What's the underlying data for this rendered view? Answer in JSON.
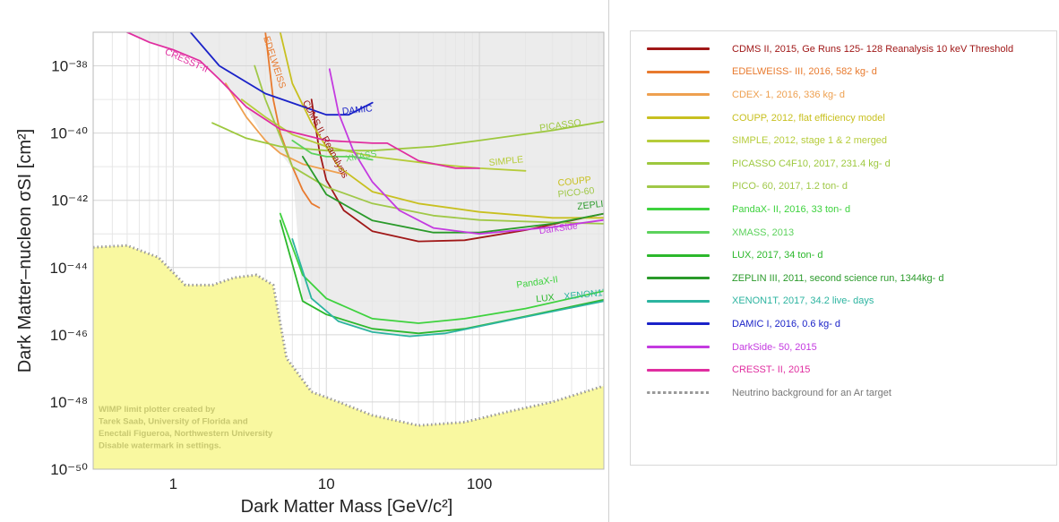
{
  "chart_data": {
    "type": "line",
    "title": "",
    "xlabel": "Dark Matter Mass [GeV/c²]",
    "ylabel": "Dark Matter–nucleon σSI [cm²]",
    "x_scale": "log",
    "y_scale": "log",
    "xlim": [
      0.3,
      650
    ],
    "ylim": [
      1e-50,
      1e-37
    ],
    "x_ticks": [
      {
        "value": 1,
        "label": "1"
      },
      {
        "value": 10,
        "label": "10"
      },
      {
        "value": 100,
        "label": "100"
      }
    ],
    "y_ticks": [
      {
        "value": 1e-38,
        "label": "10⁻³⁸"
      },
      {
        "value": 1e-40,
        "label": "10⁻⁴⁰"
      },
      {
        "value": 1e-42,
        "label": "10⁻⁴²"
      },
      {
        "value": 1e-44,
        "label": "10⁻⁴⁴"
      },
      {
        "value": 1e-46,
        "label": "10⁻⁴⁶"
      },
      {
        "value": 1e-48,
        "label": "10⁻⁴⁸"
      },
      {
        "value": 1e-50,
        "label": "10⁻⁵⁰"
      }
    ],
    "grid": true,
    "legend_position": "right",
    "watermark_lines": [
      "WIMP limit plotter created by",
      "Tarek Saab, University of Florida and",
      "Enectali Figueroa, Northwestern University",
      "Disable watermark in settings."
    ],
    "series": [
      {
        "id": "cdms",
        "name": "CDMS II, 2015, Ge Runs 125- 128 Reanalysis 10 keV Threshold",
        "color": "#a01818",
        "label": "CDMS II, Reanalysis",
        "points": [
          [
            8,
            1e-39
          ],
          [
            9,
            3e-41
          ],
          [
            10,
            4e-42
          ],
          [
            13,
            5e-43
          ],
          [
            20,
            1.2e-43
          ],
          [
            40,
            6e-44
          ],
          [
            80,
            6.5e-44
          ],
          [
            200,
            1.3e-43
          ],
          [
            650,
            4e-43
          ]
        ]
      },
      {
        "id": "edelweiss",
        "name": "EDELWEISS- III, 2016, 582 kg- d",
        "color": "#e87a2e",
        "label": "EDELWEISS",
        "points": [
          [
            4,
            1e-37
          ],
          [
            4.5,
            1e-39
          ],
          [
            5,
            1e-40
          ],
          [
            6,
            1e-41
          ],
          [
            7,
            2e-42
          ],
          [
            8,
            8e-43
          ],
          [
            9,
            6e-43
          ]
        ]
      },
      {
        "id": "cdex",
        "name": "CDEX- 1, 2016, 336 kg- d",
        "color": "#eea050",
        "label": "",
        "points": [
          [
            2.2,
            3e-39
          ],
          [
            3,
            3e-40
          ],
          [
            4,
            6e-41
          ],
          [
            5,
            2.5e-41
          ],
          [
            7,
            1.2e-41
          ],
          [
            10,
            8e-42
          ],
          [
            13,
            6e-42
          ]
        ]
      },
      {
        "id": "coupp",
        "name": "COUPP, 2012, flat efficiency model",
        "color": "#c8c020",
        "label": "COUPP",
        "points": [
          [
            5,
            1e-37
          ],
          [
            6,
            3e-39
          ],
          [
            8,
            2e-40
          ],
          [
            12,
            1e-41
          ],
          [
            20,
            1.8e-42
          ],
          [
            40,
            8e-43
          ],
          [
            100,
            4.5e-43
          ],
          [
            300,
            3e-43
          ],
          [
            650,
            3e-43
          ]
        ]
      },
      {
        "id": "simple",
        "name": "SIMPLE, 2012, stage 1 & 2 merged",
        "color": "#b6cc3a",
        "label": "SIMPLE",
        "points": [
          [
            2.8,
            1e-39
          ],
          [
            4,
            3e-40
          ],
          [
            6,
            9e-41
          ],
          [
            10,
            4e-41
          ],
          [
            20,
            2e-41
          ],
          [
            50,
            1.2e-41
          ],
          [
            100,
            9e-42
          ],
          [
            200,
            7.5e-42
          ]
        ]
      },
      {
        "id": "picasso",
        "name": "PICASSO C4F10, 2017, 231.4 kg- d",
        "color": "#9dc83e",
        "label": "PICASSO",
        "points": [
          [
            1.8,
            2e-40
          ],
          [
            3,
            7e-41
          ],
          [
            5,
            4e-41
          ],
          [
            10,
            3e-41
          ],
          [
            20,
            3e-41
          ],
          [
            50,
            4e-41
          ],
          [
            100,
            6e-41
          ],
          [
            300,
            1.2e-40
          ],
          [
            650,
            2.2e-40
          ]
        ]
      },
      {
        "id": "pico60",
        "name": "PICO- 60, 2017, 1.2 ton- d",
        "color": "#a0c848",
        "label": "PICO-60",
        "points": [
          [
            3.4,
            1e-38
          ],
          [
            4,
            1e-39
          ],
          [
            6,
            1e-41
          ],
          [
            10,
            2.5e-42
          ],
          [
            20,
            8e-43
          ],
          [
            50,
            3.5e-43
          ],
          [
            100,
            2.6e-43
          ],
          [
            300,
            2.2e-43
          ],
          [
            650,
            2e-43
          ]
        ]
      },
      {
        "id": "pandax",
        "name": "PandaX- II, 2016, 33 ton- d",
        "color": "#3ed23e",
        "label": "PandaX-II",
        "points": [
          [
            5,
            4e-43
          ],
          [
            7,
            6e-45
          ],
          [
            10,
            1.2e-45
          ],
          [
            20,
            3e-46
          ],
          [
            40,
            2.2e-46
          ],
          [
            80,
            3e-46
          ],
          [
            200,
            6e-46
          ],
          [
            650,
            2e-45
          ]
        ]
      },
      {
        "id": "xmass",
        "name": "XMASS, 2013",
        "color": "#5cd25c",
        "label": "XMASS",
        "points": [
          [
            6,
            6e-41
          ],
          [
            8,
            2.5e-41
          ],
          [
            10,
            2e-41
          ],
          [
            15,
            2e-41
          ],
          [
            20,
            1.6e-41
          ]
        ]
      },
      {
        "id": "lux",
        "name": "LUX, 2017, 34 ton- d",
        "color": "#2cb82c",
        "label": "LUX",
        "points": [
          [
            5,
            2.5e-43
          ],
          [
            7,
            1e-45
          ],
          [
            10,
            4e-46
          ],
          [
            20,
            1.5e-46
          ],
          [
            40,
            1.1e-46
          ],
          [
            80,
            1.5e-46
          ],
          [
            200,
            3.5e-46
          ],
          [
            650,
            1.1e-45
          ]
        ]
      },
      {
        "id": "zeplin",
        "name": "ZEPLIN III, 2011, second science run, 1344kg- d",
        "color": "#2a9a2a",
        "label": "ZEPLIN",
        "points": [
          [
            7,
            2e-41
          ],
          [
            10,
            1.5e-42
          ],
          [
            20,
            2.5e-43
          ],
          [
            50,
            1.1e-43
          ],
          [
            100,
            1.1e-43
          ],
          [
            300,
            2e-43
          ],
          [
            650,
            4e-43
          ]
        ]
      },
      {
        "id": "xenon1t",
        "name": "XENON1T, 2017, 34.2 live- days",
        "color": "#2cb4a0",
        "label": "XENON1T",
        "points": [
          [
            6,
            7e-44
          ],
          [
            8,
            1.2e-45
          ],
          [
            12,
            2.5e-46
          ],
          [
            20,
            1.2e-46
          ],
          [
            35,
            9e-47
          ],
          [
            60,
            1.1e-46
          ],
          [
            150,
            2.6e-46
          ],
          [
            650,
            1e-45
          ]
        ]
      },
      {
        "id": "damic",
        "name": "DAMIC I, 2016, 0.6 kg- d",
        "color": "#1a22c8",
        "label": "DAMIC",
        "points": [
          [
            1.2,
            1.5e-37
          ],
          [
            2,
            1e-38
          ],
          [
            4,
            1.5e-39
          ],
          [
            8,
            5e-40
          ],
          [
            10,
            3.5e-40
          ],
          [
            14,
            3.5e-40
          ],
          [
            20,
            8e-40
          ]
        ]
      },
      {
        "id": "darkside",
        "name": "DarkSide- 50, 2015",
        "color": "#c43ae0",
        "label": "DarkSide",
        "points": [
          [
            10.5,
            8e-39
          ],
          [
            12,
            4e-40
          ],
          [
            15,
            3e-41
          ],
          [
            20,
            3.5e-42
          ],
          [
            30,
            5e-43
          ],
          [
            50,
            1.5e-43
          ],
          [
            100,
            1e-43
          ],
          [
            300,
            1.6e-43
          ],
          [
            650,
            2.6e-43
          ]
        ]
      },
      {
        "id": "cresst",
        "name": "CRESST- II, 2015",
        "color": "#e02ea0",
        "label": "CRESST-II",
        "points": [
          [
            0.5,
            1e-37
          ],
          [
            0.7,
            5e-38
          ],
          [
            1,
            3e-38
          ],
          [
            1.5,
            1.4e-38
          ],
          [
            2,
            4e-39
          ],
          [
            3,
            6e-40
          ],
          [
            5,
            1.3e-40
          ],
          [
            10,
            6e-41
          ],
          [
            20,
            5e-41
          ],
          [
            25,
            5e-41
          ],
          [
            40,
            1.5e-41
          ],
          [
            70,
            9e-42
          ],
          [
            100,
            9e-42
          ]
        ]
      }
    ],
    "neutrino_background": {
      "name": "Neutrino background for an Ar target",
      "color": "#9a9a9a",
      "fill": "#f9f8a0",
      "points": [
        [
          0.3,
          4e-44
        ],
        [
          0.5,
          4.5e-44
        ],
        [
          0.8,
          2e-44
        ],
        [
          1.2,
          3e-45
        ],
        [
          1.8,
          3e-45
        ],
        [
          2.5,
          5e-45
        ],
        [
          3.5,
          6e-45
        ],
        [
          4.5,
          3e-45
        ],
        [
          5.5,
          2e-47
        ],
        [
          8,
          2e-48
        ],
        [
          12,
          1e-48
        ],
        [
          20,
          4e-49
        ],
        [
          40,
          2e-49
        ],
        [
          80,
          2.5e-49
        ],
        [
          150,
          5e-49
        ],
        [
          300,
          1e-48
        ],
        [
          650,
          3e-48
        ]
      ]
    }
  }
}
